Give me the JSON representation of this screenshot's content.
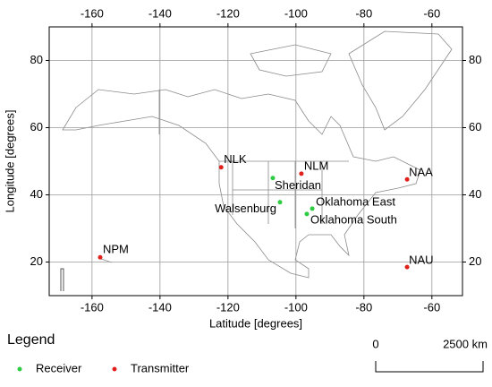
{
  "chart_data": {
    "type": "map",
    "xlabel": "Latitude [degrees]",
    "ylabel": "Longitude [degrees]",
    "xlim": [
      -172.6,
      -51
    ],
    "ylim": [
      10,
      90
    ],
    "xticks": [
      -160,
      -140,
      -120,
      -100,
      -80,
      -60
    ],
    "yticks": [
      20,
      40,
      60,
      80
    ],
    "grid": true,
    "legend_title": "Legend",
    "scale_bar": [
      "0",
      "2500 km"
    ],
    "series": [
      {
        "name": "Receiver",
        "color": "#2ecc40",
        "labels": [
          "Sheridan",
          "Walsenburg",
          "Oklahoma East",
          "Oklahoma South"
        ],
        "x": [
          -106.8,
          -104.7,
          -95.2,
          -96.8
        ],
        "y": [
          45,
          37.8,
          35.9,
          34.3
        ]
      },
      {
        "name": "Transmitter",
        "color": "#e0201b",
        "labels": [
          "NLK",
          "NLM",
          "NAA",
          "NAU",
          "NPM"
        ],
        "x": [
          -122,
          -98.4,
          -67.3,
          -67.3,
          -157.6
        ],
        "y": [
          48.2,
          46.3,
          44.6,
          18.5,
          21.4
        ]
      }
    ]
  }
}
